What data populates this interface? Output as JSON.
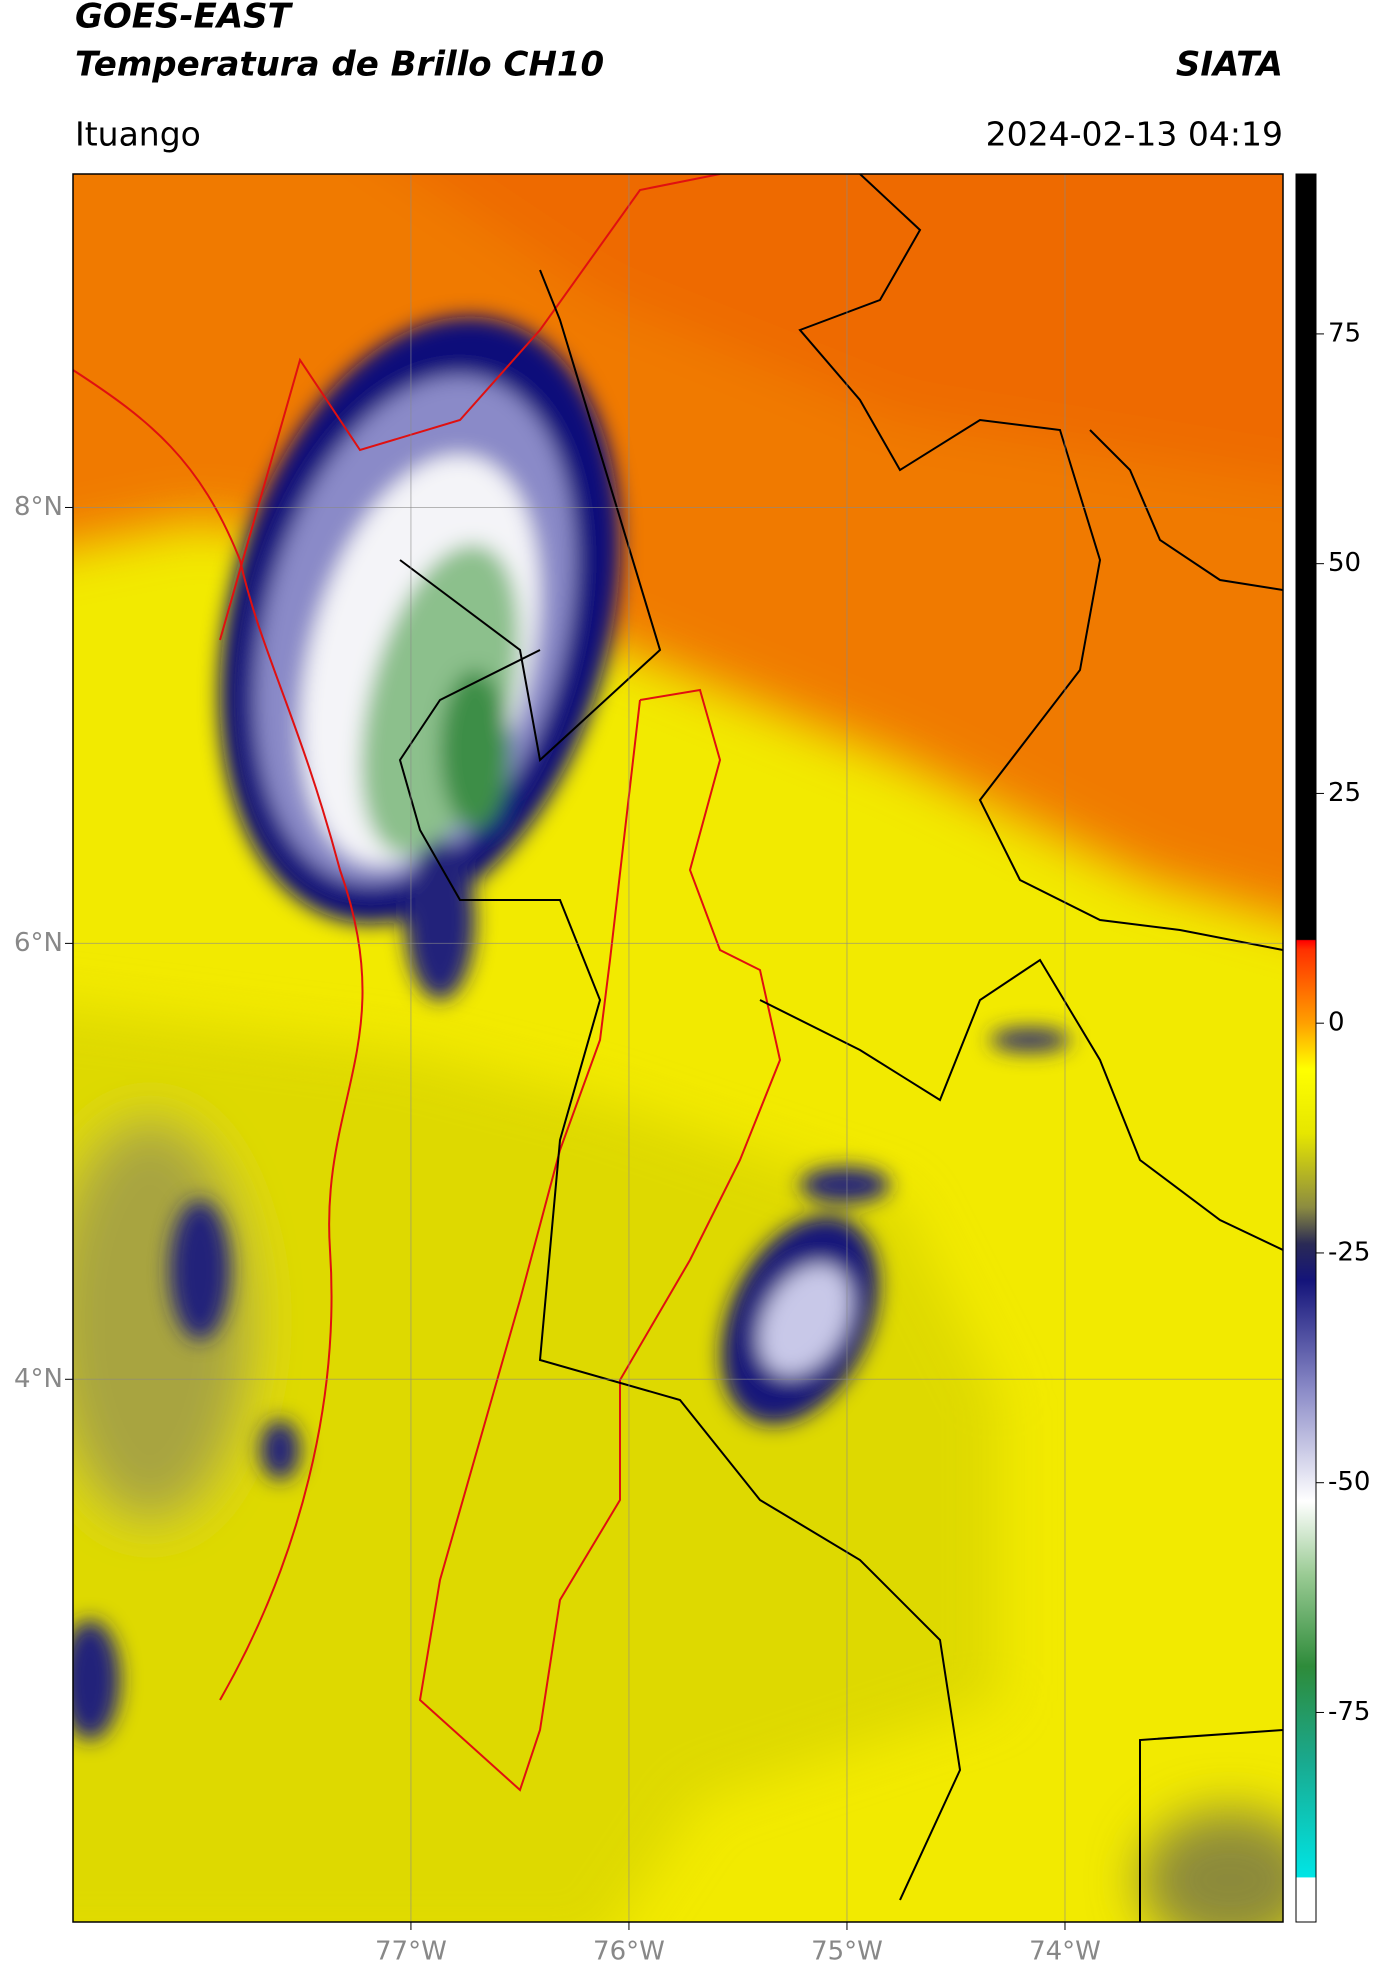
{
  "header": {
    "title": "GOES-EAST",
    "subtitle": "Temperatura de Brillo CH10",
    "source": "SIATA",
    "region": "Ituango",
    "datetime": "2024-02-13 04:19"
  },
  "chart_data": {
    "type": "map",
    "xlim": [
      -78.55,
      -73.0
    ],
    "ylim": [
      1.51,
      9.53
    ],
    "xticks": [
      {
        "value": -77,
        "label": "77°W"
      },
      {
        "value": -76,
        "label": "76°W"
      },
      {
        "value": -75,
        "label": "75°W"
      },
      {
        "value": -74,
        "label": "74°W"
      }
    ],
    "yticks": [
      {
        "value": 8,
        "label": "8°N"
      },
      {
        "value": 6,
        "label": "6°N"
      },
      {
        "value": 4,
        "label": "4°N"
      }
    ],
    "grid": true,
    "colorbar": {
      "clim": [
        -97.8,
        92.4
      ],
      "ticks": [
        -75,
        -50,
        -25,
        0,
        25,
        50,
        75
      ],
      "colormap": [
        {
          "value": -97.8,
          "color": "#ffffff"
        },
        {
          "value": -93,
          "color": "#ffffff"
        },
        {
          "value": -92.9,
          "color": "#00e5e5"
        },
        {
          "value": -80,
          "color": "#1aa88c"
        },
        {
          "value": -70,
          "color": "#2e8b3a"
        },
        {
          "value": -60,
          "color": "#9acb94"
        },
        {
          "value": -52,
          "color": "#ffffff"
        },
        {
          "value": -40,
          "color": "#8c8cc8"
        },
        {
          "value": -28,
          "color": "#14147a"
        },
        {
          "value": -24,
          "color": "#2a2a55"
        },
        {
          "value": -20,
          "color": "#8c8c40"
        },
        {
          "value": -12,
          "color": "#e6e600"
        },
        {
          "value": -5,
          "color": "#ffff00"
        },
        {
          "value": 0,
          "color": "#ffa000"
        },
        {
          "value": 8,
          "color": "#ff3000"
        },
        {
          "value": 9,
          "color": "#ff0000"
        },
        {
          "value": 9.1,
          "color": "#000000"
        },
        {
          "value": 92.4,
          "color": "#000000"
        }
      ]
    }
  }
}
